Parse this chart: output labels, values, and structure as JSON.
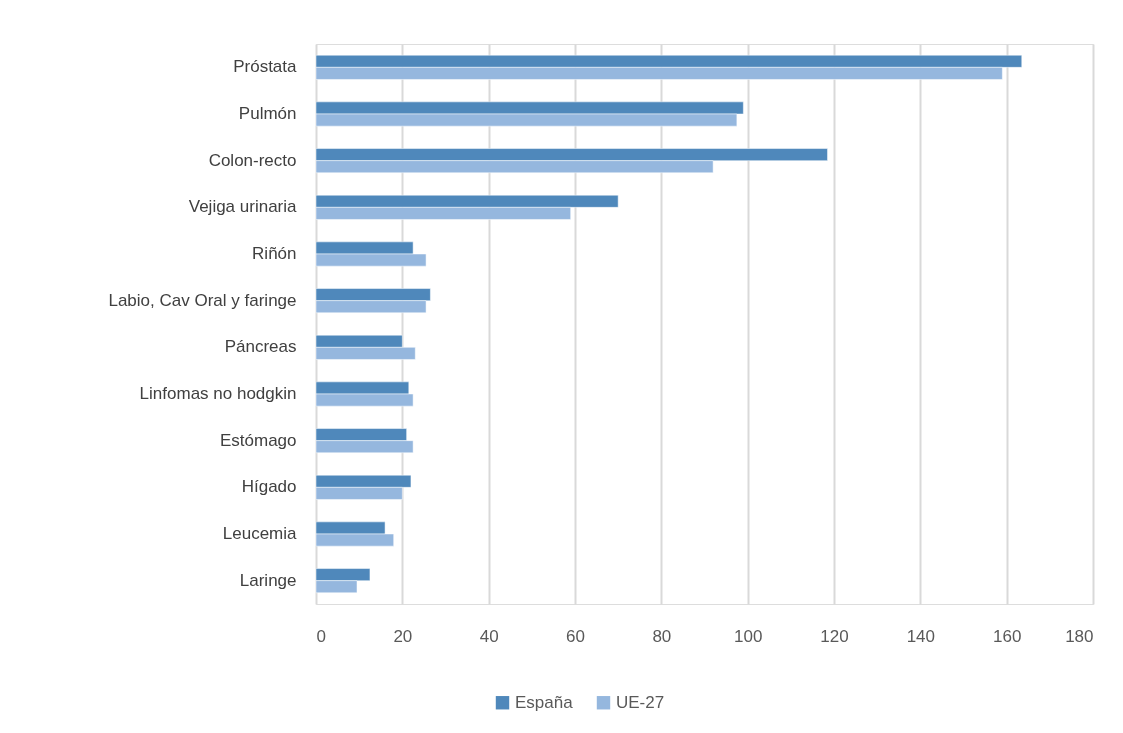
{
  "chart_data": {
    "type": "bar",
    "orientation": "horizontal",
    "categories": [
      "Próstata",
      "Pulmón",
      "Colon-recto",
      "Vejiga urinaria",
      "Riñón",
      "Labio, Cav Oral y faringe",
      "Páncreas",
      "Linfomas no hodgkin",
      "Estómago",
      "Hígado",
      "Leucemia",
      "Laringe"
    ],
    "series": [
      {
        "name": "España",
        "color": "#4f88bb",
        "values": [
          163.5,
          99,
          118.5,
          70,
          22.5,
          26.5,
          20,
          21.5,
          21,
          22,
          16,
          12.5
        ]
      },
      {
        "name": "UE-27",
        "color": "#95b7de",
        "values": [
          159,
          97.5,
          92,
          59,
          25.5,
          25.5,
          23,
          22.5,
          22.5,
          20,
          18,
          9.5
        ]
      }
    ],
    "xlim": [
      0,
      180
    ],
    "xticks": [
      0,
      20,
      40,
      60,
      80,
      100,
      120,
      140,
      160,
      180
    ],
    "grid": "x",
    "legend": "bottom"
  }
}
